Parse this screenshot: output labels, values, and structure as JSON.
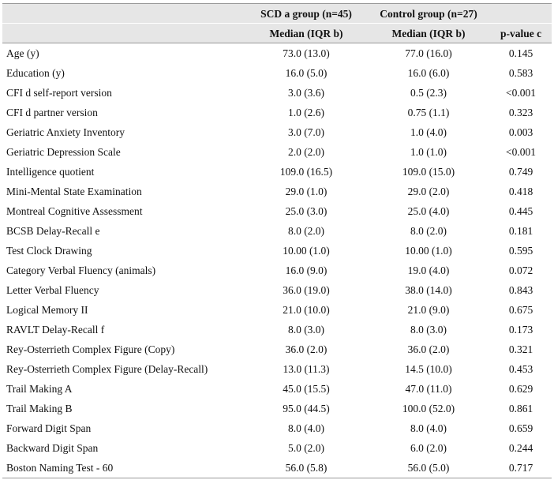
{
  "table": {
    "header": [
      [
        "",
        "SCD a group (n=45)",
        "Control group (n=27)",
        ""
      ],
      [
        "",
        "Median (IQR b)",
        "Median (IQR b)",
        "p-value c"
      ]
    ],
    "rows": [
      [
        "Age (y)",
        "73.0 (13.0)",
        "77.0 (16.0)",
        "0.145"
      ],
      [
        "Education (y)",
        "16.0 (5.0)",
        "16.0 (6.0)",
        "0.583"
      ],
      [
        "CFI d self-report version",
        "3.0 (3.6)",
        "0.5 (2.3)",
        "<0.001"
      ],
      [
        "CFI d partner version",
        "1.0 (2.6)",
        "0.75 (1.1)",
        "0.323"
      ],
      [
        "Geriatric Anxiety Inventory",
        "3.0 (7.0)",
        "1.0 (4.0)",
        "0.003"
      ],
      [
        "Geriatric Depression Scale",
        "2.0 (2.0)",
        "1.0 (1.0)",
        "<0.001"
      ],
      [
        "Intelligence quotient",
        "109.0 (16.5)",
        "109.0 (15.0)",
        "0.749"
      ],
      [
        "Mini-Mental State Examination",
        "29.0 (1.0)",
        "29.0 (2.0)",
        "0.418"
      ],
      [
        "Montreal Cognitive Assessment",
        "25.0 (3.0)",
        "25.0 (4.0)",
        "0.445"
      ],
      [
        "BCSB Delay-Recall e",
        "8.0 (2.0)",
        "8.0 (2.0)",
        "0.181"
      ],
      [
        "Test Clock Drawing",
        "10.00 (1.0)",
        "10.00 (1.0)",
        "0.595"
      ],
      [
        "Category Verbal Fluency (animals)",
        "16.0 (9.0)",
        "19.0 (4.0)",
        "0.072"
      ],
      [
        "Letter Verbal Fluency",
        "36.0 (19.0)",
        "38.0 (14.0)",
        "0.843"
      ],
      [
        "Logical Memory II",
        "21.0 (10.0)",
        "21.0 (9.0)",
        "0.675"
      ],
      [
        "RAVLT Delay-Recall f",
        "8.0 (3.0)",
        "8.0 (3.0)",
        "0.173"
      ],
      [
        "Rey-Osterrieth Complex Figure (Copy)",
        "36.0 (2.0)",
        "36.0 (2.0)",
        "0.321"
      ],
      [
        "Rey-Osterrieth Complex Figure (Delay-Recall)",
        "13.0 (11.3)",
        "14.5 (10.0)",
        "0.453"
      ],
      [
        "Trail Making A",
        "45.0 (15.5)",
        "47.0 (11.0)",
        "0.629"
      ],
      [
        "Trail Making B",
        "95.0 (44.5)",
        "100.0 (52.0)",
        "0.861"
      ],
      [
        "Forward Digit Span",
        "8.0 (4.0)",
        "8.0 (4.0)",
        "0.659"
      ],
      [
        "Backward Digit Span",
        "5.0 (2.0)",
        "6.0 (2.0)",
        "0.244"
      ],
      [
        "Boston Naming Test - 60",
        "56.0 (5.8)",
        "56.0 (5.0)",
        "0.717"
      ]
    ]
  }
}
